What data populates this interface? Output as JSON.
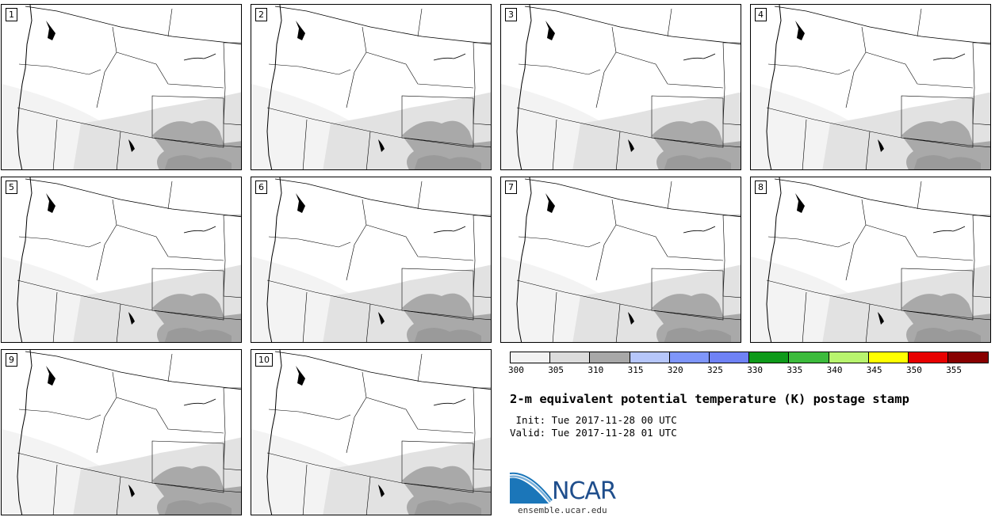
{
  "panels": [
    {
      "label": "1"
    },
    {
      "label": "2"
    },
    {
      "label": "3"
    },
    {
      "label": "4"
    },
    {
      "label": "5"
    },
    {
      "label": "6"
    },
    {
      "label": "7"
    },
    {
      "label": "8"
    },
    {
      "label": "9"
    },
    {
      "label": "10"
    }
  ],
  "colorbar": {
    "colors": [
      "#f2f2f2",
      "#dcdcdc",
      "#a8a8a8",
      "#b6c6fa",
      "#7f96fa",
      "#6f82f5",
      "#0e9a1a",
      "#3cbb3c",
      "#b8f46e",
      "#ffff00",
      "#e80000",
      "#880000"
    ],
    "ticks": [
      "300",
      "305",
      "310",
      "315",
      "320",
      "325",
      "330",
      "335",
      "340",
      "345",
      "350",
      "355"
    ]
  },
  "title": "2-m equivalent potential temperature (K) postage stamp",
  "init_text": " Init: Tue 2017-11-28 00 UTC",
  "valid_text": "Valid: Tue 2017-11-28 01 UTC",
  "logo_text": "NCAR",
  "site": "ensemble.ucar.edu"
}
